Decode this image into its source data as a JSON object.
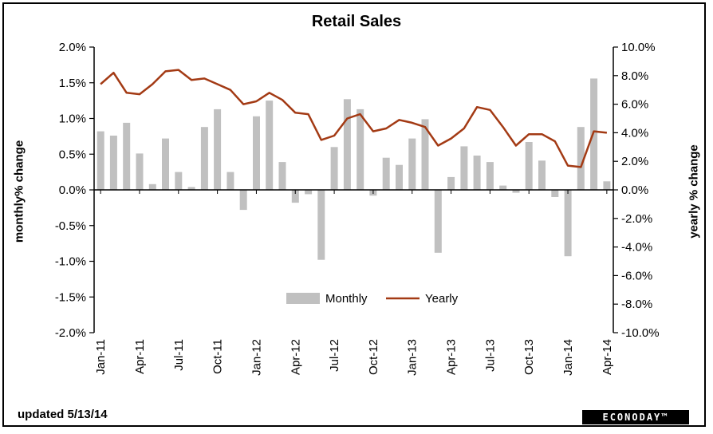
{
  "chart_data": {
    "type": "bar",
    "title": "Retail Sales",
    "left_axis": {
      "label": "monthly% change",
      "range": [
        -2.0,
        2.0
      ],
      "ticks": [
        "2.0%",
        "1.5%",
        "1.0%",
        "0.5%",
        "0.0%",
        "-0.5%",
        "-1.0%",
        "-1.5%",
        "-2.0%"
      ]
    },
    "right_axis": {
      "label": "yearly % change",
      "range": [
        -10.0,
        10.0
      ],
      "ticks": [
        "10.0%",
        "8.0%",
        "6.0%",
        "4.0%",
        "2.0%",
        "0.0%",
        "-2.0%",
        "-4.0%",
        "-6.0%",
        "-8.0%",
        "-10.0%"
      ]
    },
    "x_tick_labels": [
      "Jan-11",
      "Apr-11",
      "Jul-11",
      "Oct-11",
      "Jan-12",
      "Apr-12",
      "Jul-12",
      "Oct-12",
      "Jan-13",
      "Apr-13",
      "Jul-13",
      "Oct-13",
      "Jan-14",
      "Apr-14"
    ],
    "categories": [
      "Jan-11",
      "Feb-11",
      "Mar-11",
      "Apr-11",
      "May-11",
      "Jun-11",
      "Jul-11",
      "Aug-11",
      "Sep-11",
      "Oct-11",
      "Nov-11",
      "Dec-11",
      "Jan-12",
      "Feb-12",
      "Mar-12",
      "Apr-12",
      "May-12",
      "Jun-12",
      "Jul-12",
      "Aug-12",
      "Sep-12",
      "Oct-12",
      "Nov-12",
      "Dec-12",
      "Jan-13",
      "Feb-13",
      "Mar-13",
      "Apr-13",
      "May-13",
      "Jun-13",
      "Jul-13",
      "Aug-13",
      "Sep-13",
      "Oct-13",
      "Nov-13",
      "Dec-13",
      "Jan-14",
      "Feb-14",
      "Mar-14",
      "Apr-14"
    ],
    "series": [
      {
        "name": "Monthly",
        "type": "bar",
        "axis": "left",
        "color": "#c0c0c0",
        "values": [
          0.82,
          0.76,
          0.94,
          0.51,
          0.08,
          0.72,
          0.25,
          0.04,
          0.88,
          1.13,
          0.25,
          -0.28,
          1.03,
          1.25,
          0.39,
          -0.18,
          -0.06,
          -0.98,
          0.6,
          1.27,
          1.13,
          -0.08,
          0.45,
          0.35,
          0.72,
          0.99,
          -0.88,
          0.18,
          0.61,
          0.48,
          0.39,
          0.06,
          -0.04,
          0.67,
          0.41,
          -0.1,
          -0.93,
          0.88,
          1.56,
          0.12
        ]
      },
      {
        "name": "Yearly",
        "type": "line",
        "axis": "right",
        "color": "#a33a14",
        "values": [
          7.4,
          8.2,
          6.8,
          6.7,
          7.4,
          8.3,
          8.4,
          7.7,
          7.8,
          7.4,
          7.0,
          6.0,
          6.2,
          6.8,
          6.3,
          5.4,
          5.3,
          3.5,
          3.8,
          5.0,
          5.3,
          4.1,
          4.3,
          4.9,
          4.7,
          4.4,
          3.1,
          3.6,
          4.3,
          5.8,
          5.6,
          4.4,
          3.1,
          3.9,
          3.9,
          3.4,
          1.7,
          1.6,
          4.1,
          4.0
        ]
      }
    ],
    "legend": {
      "position": "lower-center",
      "entries": [
        "Monthly",
        "Yearly"
      ]
    },
    "grid": false
  },
  "footer": {
    "updated": "updated 5/13/14",
    "brand": "ECONODAY™"
  }
}
